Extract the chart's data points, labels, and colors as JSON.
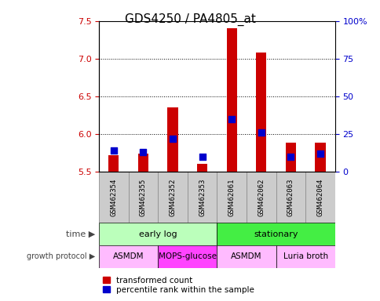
{
  "title": "GDS4250 / PA4805_at",
  "samples": [
    "GSM462354",
    "GSM462355",
    "GSM462352",
    "GSM462353",
    "GSM462061",
    "GSM462062",
    "GSM462063",
    "GSM462064"
  ],
  "transformed_counts": [
    5.72,
    5.74,
    6.35,
    5.6,
    7.4,
    7.08,
    5.88,
    5.88
  ],
  "percentile_ranks": [
    14,
    13,
    22,
    10,
    35,
    26,
    10,
    12
  ],
  "ylim_left": [
    5.5,
    7.5
  ],
  "ylim_right": [
    0,
    100
  ],
  "yticks_left": [
    5.5,
    6.0,
    6.5,
    7.0,
    7.5
  ],
  "yticks_right": [
    0,
    25,
    50,
    75,
    100
  ],
  "yticklabels_right": [
    "0",
    "25",
    "50",
    "75",
    "100%"
  ],
  "grid_yticks": [
    6.0,
    6.5,
    7.0
  ],
  "bar_color": "#cc0000",
  "dot_color": "#0000cc",
  "bar_width": 0.35,
  "dot_size": 30,
  "time_groups": [
    {
      "label": "early log",
      "start": 0,
      "end": 4,
      "color": "#bbffbb"
    },
    {
      "label": "stationary",
      "start": 4,
      "end": 8,
      "color": "#44ee44"
    }
  ],
  "protocol_groups": [
    {
      "label": "ASMDM",
      "start": 0,
      "end": 2,
      "color": "#ffbbff"
    },
    {
      "label": "MOPS-glucose",
      "start": 2,
      "end": 4,
      "color": "#ff44ff"
    },
    {
      "label": "ASMDM",
      "start": 4,
      "end": 6,
      "color": "#ffbbff"
    },
    {
      "label": "Luria broth",
      "start": 6,
      "end": 8,
      "color": "#ffbbff"
    }
  ],
  "left_tick_color": "#cc0000",
  "right_tick_color": "#0000cc",
  "sample_bg_color": "#cccccc",
  "sample_edge_color": "#888888"
}
